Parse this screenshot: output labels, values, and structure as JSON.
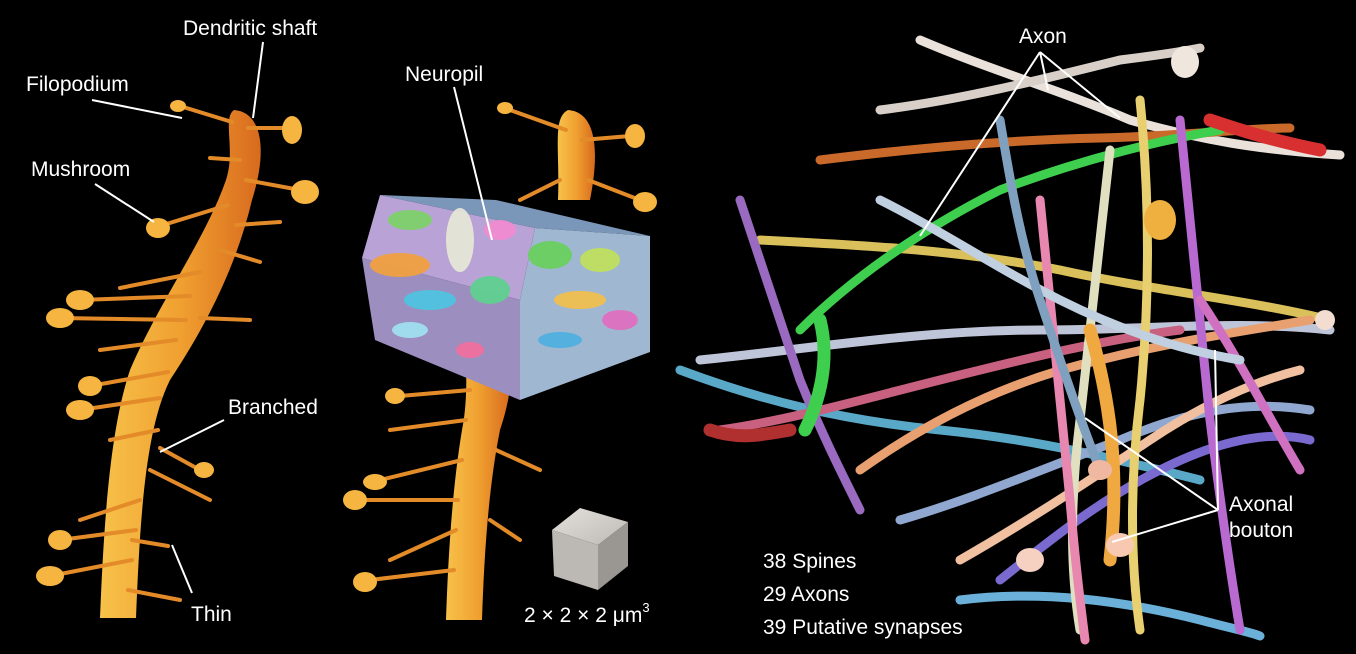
{
  "panels": {
    "left": {
      "labels": {
        "dendritic_shaft": "Dendritic shaft",
        "filopodium": "Filopodium",
        "mushroom": "Mushroom",
        "branched": "Branched",
        "thin": "Thin"
      }
    },
    "middle": {
      "labels": {
        "neuropil": "Neuropil"
      },
      "scale": {
        "text": "2 × 2 × 2 μm",
        "exponent": "3"
      }
    },
    "right": {
      "labels": {
        "axon": "Axon",
        "axonal_bouton_line1": "Axonal",
        "axonal_bouton_line2": "bouton"
      },
      "stats": [
        "38 Spines",
        "29 Axons",
        "39 Putative synapses"
      ]
    }
  },
  "colors": {
    "background": "#000000",
    "dendrite": "#f2a830",
    "dendrite_shade": "#d9711f",
    "label": "#ffffff",
    "cube": "#c9c6c2"
  }
}
